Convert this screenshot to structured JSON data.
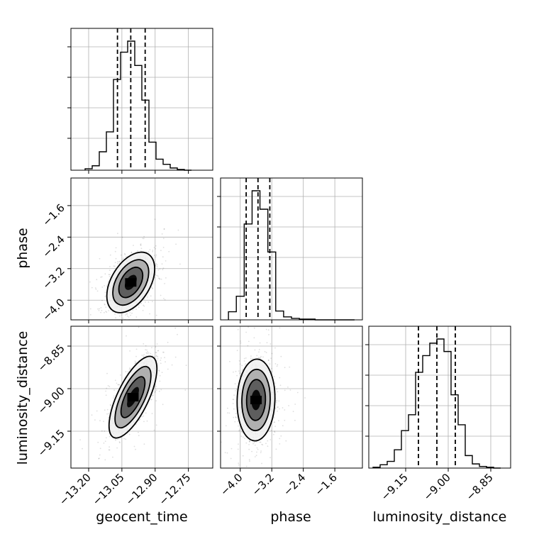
{
  "chart_data": {
    "type": "corner",
    "parameters": [
      "geocent_time",
      "phase",
      "luminosity_distance"
    ],
    "axis_labels": {
      "x": [
        "geocent_time",
        "phase",
        "luminosity_distance"
      ],
      "y": [
        "phase",
        "luminosity_distance"
      ]
    },
    "ticks": {
      "geocent_time": [
        "−13.20",
        "−13.05",
        "−12.90",
        "−12.75"
      ],
      "phase": [
        "−4.0",
        "−3.2",
        "−2.4",
        "−1.6"
      ],
      "luminosity_distance": [
        "−9.15",
        "−9.00",
        "−8.85"
      ]
    },
    "ranges": {
      "geocent_time": [
        -13.28,
        -12.64
      ],
      "phase": [
        -4.5,
        -0.9
      ],
      "luminosity_distance": [
        -9.28,
        -8.78
      ]
    },
    "grid": true,
    "histogram_style": "step",
    "histograms": {
      "geocent_time": {
        "edges": [
          -13.216,
          -13.184,
          -13.152,
          -13.12,
          -13.088,
          -13.056,
          -13.024,
          -12.992,
          -12.96,
          -12.928,
          -12.896,
          -12.864,
          -12.832,
          -12.8,
          -12.768,
          -12.736
        ],
        "counts": [
          2,
          6,
          25,
          52,
          123,
          160,
          175,
          142,
          95,
          38,
          15,
          8,
          3,
          1,
          0
        ],
        "quantiles": [
          -13.07,
          -13.01,
          -12.945
        ]
      },
      "phase": {
        "edges": [
          -4.3,
          -4.1,
          -3.9,
          -3.7,
          -3.5,
          -3.3,
          -3.1,
          -2.9,
          -2.7,
          -2.5,
          -2.3,
          -2.1,
          -1.9,
          -1.7,
          -1.5,
          -1.3,
          -1.1
        ],
        "counts": [
          11,
          32,
          130,
          175,
          150,
          92,
          12,
          4,
          2,
          1,
          1,
          0,
          0,
          0,
          0,
          0
        ],
        "quantiles": [
          -3.85,
          -3.55,
          -3.25
        ]
      },
      "luminosity_distance": {
        "edges": [
          -9.265,
          -9.24,
          -9.215,
          -9.19,
          -9.165,
          -9.14,
          -9.115,
          -9.09,
          -9.065,
          -9.04,
          -9.015,
          -8.99,
          -8.965,
          -8.94,
          -8.915,
          -8.89,
          -8.865,
          -8.84,
          -8.815
        ],
        "counts": [
          1,
          4,
          8,
          22,
          45,
          64,
          115,
          135,
          150,
          155,
          140,
          88,
          52,
          15,
          5,
          2,
          1,
          0
        ],
        "quantiles": [
          -9.105,
          -9.04,
          -8.975
        ]
      }
    },
    "scatter_2d": {
      "geocent_time_vs_phase": {
        "x_mean": -13.01,
        "y_mean": -3.55,
        "x_sd": 0.045,
        "y_sd": 0.32,
        "corr": 0.45,
        "contour_sigma_levels": [
          0.5,
          1.0,
          1.5,
          2.0
        ]
      },
      "geocent_time_vs_luminosity_distance": {
        "x_mean": -13.0,
        "y_mean": -9.03,
        "x_sd": 0.045,
        "y_sd": 0.06,
        "corr": 0.7,
        "contour_sigma_levels": [
          0.5,
          1.0,
          1.5,
          2.0
        ]
      },
      "phase_vs_luminosity_distance": {
        "x_mean": -3.6,
        "y_mean": -9.04,
        "x_sd": 0.2,
        "y_sd": 0.06,
        "corr": 0.05,
        "contour_sigma_levels": [
          0.5,
          1.0,
          1.5,
          2.0
        ]
      }
    }
  },
  "colors": {
    "line": "#000000",
    "grid": "#b0b0b0",
    "scatter": "#000000",
    "density_dark": "#000000",
    "density_mid": "#555555",
    "density_light": "#a8a8a8",
    "contour_fill": "#f0f0f0"
  }
}
